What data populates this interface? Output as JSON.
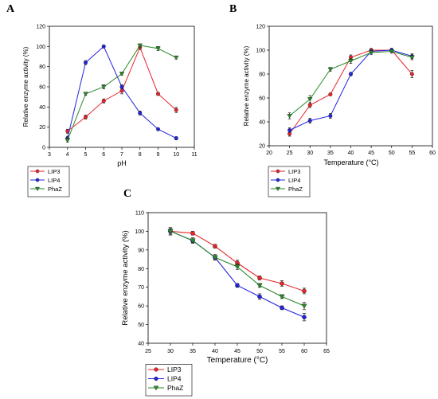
{
  "chart_data": [
    {
      "panel": "A",
      "type": "line",
      "xlabel": "pH",
      "ylabel": "Relative enzyme activity (%)",
      "xlim": [
        3,
        11
      ],
      "ylim": [
        0,
        120
      ],
      "xticks": [
        3,
        4,
        5,
        6,
        7,
        8,
        9,
        10,
        11
      ],
      "yticks": [
        0,
        20,
        40,
        60,
        80,
        100,
        120
      ],
      "legend_position": "below-left",
      "x": [
        4,
        5,
        6,
        7,
        8,
        9,
        10
      ],
      "series": [
        {
          "name": "LIP3",
          "color": "#e8242a",
          "marker": "circle",
          "values": [
            16,
            30,
            46,
            56,
            99,
            53,
            37
          ],
          "errors": [
            2,
            2,
            2,
            3,
            2,
            1.5,
            2.5
          ]
        },
        {
          "name": "LIP4",
          "color": "#2323e0",
          "marker": "circle",
          "values": [
            9,
            84,
            100,
            60,
            34,
            18,
            9
          ],
          "errors": [
            2,
            2,
            1.5,
            2,
            2,
            1,
            1.5
          ]
        },
        {
          "name": "PhaZ",
          "color": "#2a8a2a",
          "marker": "triangle",
          "values": [
            7,
            53,
            60,
            73,
            101,
            98,
            89
          ],
          "errors": [
            2,
            1.5,
            2,
            1.5,
            1.5,
            2,
            1.5
          ]
        }
      ]
    },
    {
      "panel": "B",
      "type": "line",
      "xlabel": "Temperature (°C)",
      "ylabel": "Relative enzyme activity (%)",
      "xlim": [
        20,
        60
      ],
      "ylim": [
        20,
        120
      ],
      "xticks": [
        20,
        25,
        30,
        35,
        40,
        45,
        50,
        55,
        60
      ],
      "yticks": [
        20,
        40,
        60,
        80,
        100,
        120
      ],
      "legend_position": "below-left",
      "x": [
        25,
        30,
        35,
        40,
        45,
        50,
        55
      ],
      "series": [
        {
          "name": "LIP3",
          "color": "#e8242a",
          "marker": "circle",
          "values": [
            30,
            54,
            63,
            94,
            100,
            100,
            80
          ],
          "errors": [
            2,
            2,
            1,
            2,
            1.5,
            1.5,
            3
          ]
        },
        {
          "name": "LIP4",
          "color": "#2323e0",
          "marker": "circle",
          "values": [
            33,
            41,
            45,
            80,
            99,
            100,
            95
          ],
          "errors": [
            2,
            2,
            2,
            1.5,
            1.5,
            1.5,
            2
          ]
        },
        {
          "name": "PhaZ",
          "color": "#2a8a2a",
          "marker": "triangle",
          "values": [
            45,
            59,
            84,
            91,
            98,
            99,
            94
          ],
          "errors": [
            2.5,
            3,
            1.5,
            2,
            1.5,
            1.5,
            2
          ]
        }
      ]
    },
    {
      "panel": "C",
      "type": "line",
      "xlabel": "Temperature (°C)",
      "ylabel": "Relative enzyme activity (%)",
      "xlim": [
        25,
        65
      ],
      "ylim": [
        40,
        110
      ],
      "xticks": [
        25,
        30,
        35,
        40,
        45,
        50,
        55,
        60,
        65
      ],
      "yticks": [
        40,
        50,
        60,
        70,
        80,
        90,
        100,
        110
      ],
      "legend_position": "below-left",
      "x": [
        30,
        35,
        40,
        45,
        50,
        55,
        60
      ],
      "series": [
        {
          "name": "LIP3",
          "color": "#e8242a",
          "marker": "circle",
          "values": [
            100,
            99,
            92,
            83,
            75,
            72,
            68
          ],
          "errors": [
            1.5,
            1,
            1,
            1.5,
            1,
            1.5,
            1.5
          ]
        },
        {
          "name": "LIP4",
          "color": "#2323e0",
          "marker": "circle",
          "values": [
            100,
            95,
            86,
            71,
            65,
            59,
            54
          ],
          "errors": [
            1.5,
            1,
            1,
            1,
            1.5,
            1,
            2
          ]
        },
        {
          "name": "PhaZ",
          "color": "#2a8a2a",
          "marker": "triangle",
          "values": [
            100,
            95,
            86,
            81,
            71,
            65,
            60
          ],
          "errors": [
            2,
            1.5,
            1.5,
            1.5,
            1,
            1,
            2
          ]
        }
      ]
    }
  ]
}
